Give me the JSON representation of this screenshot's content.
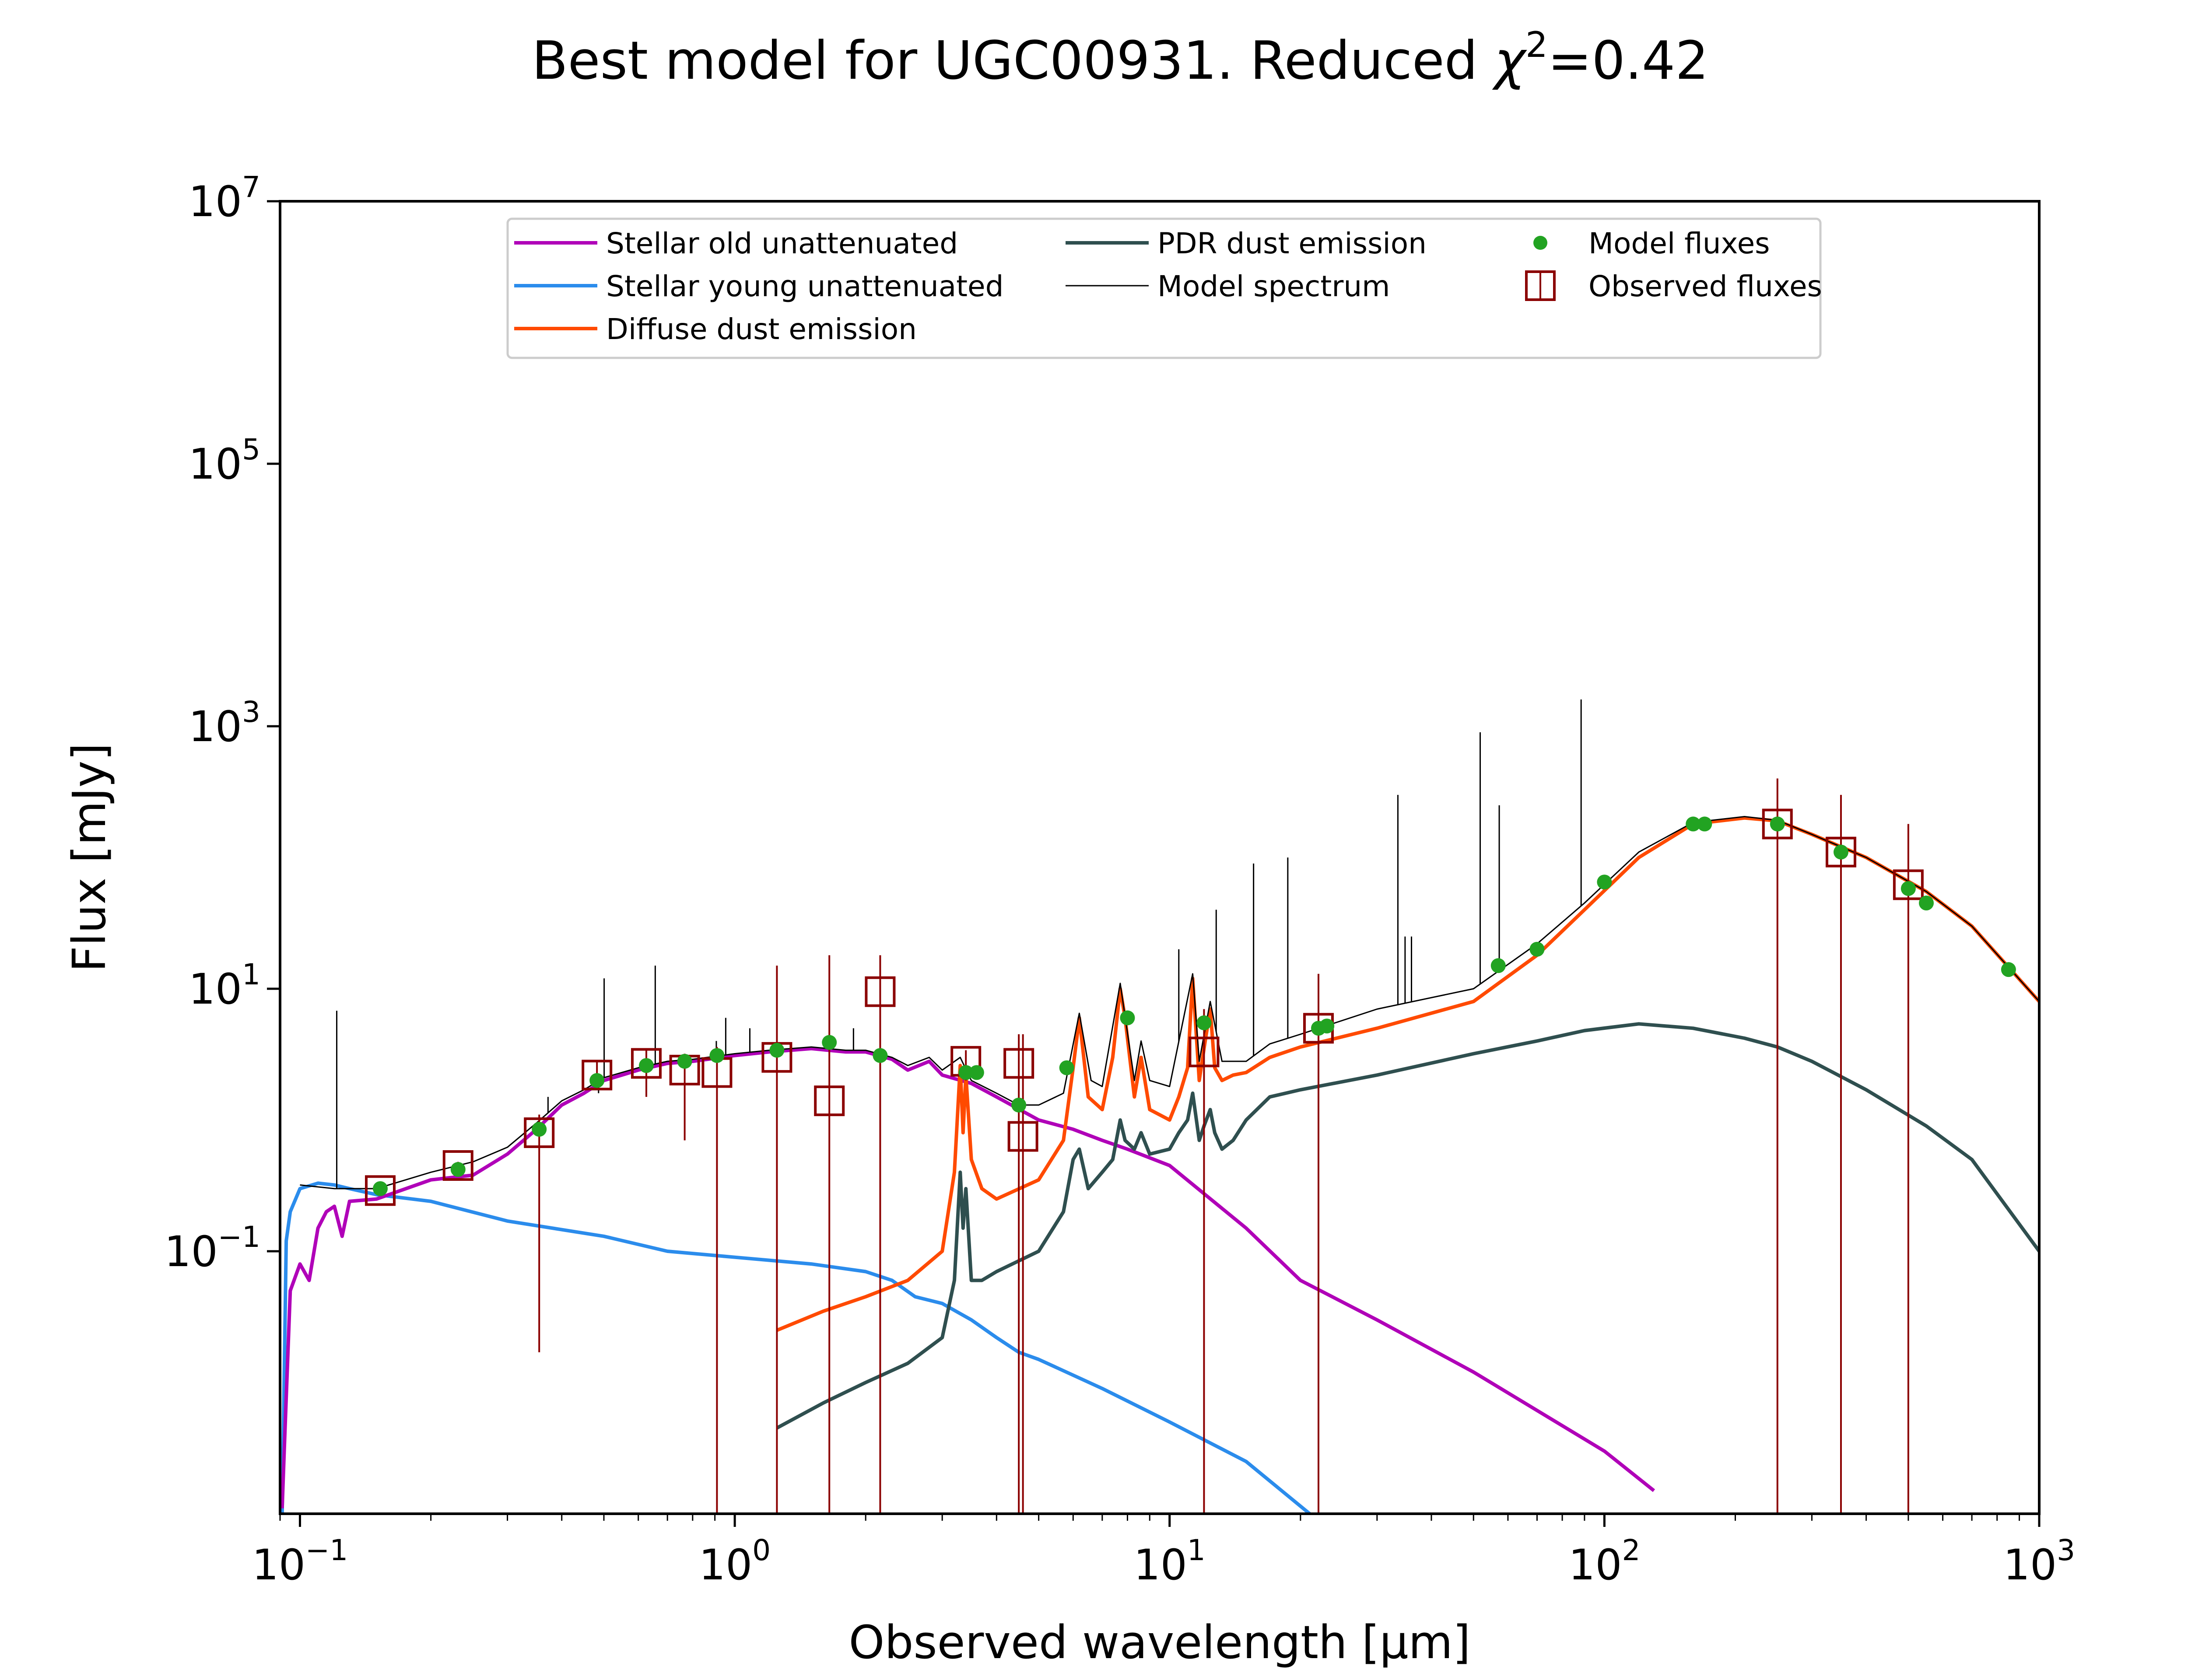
{
  "chart_data": {
    "type": "line",
    "title": "Best model for UGC00931. Reduced χ²=0.42",
    "title_parts": {
      "main": "Best model for UGC00931. Reduced ",
      "chi": "χ",
      "sup": "2",
      "tail": "=0.42"
    },
    "xlabel": "Observed wavelength [μm]",
    "ylabel": "Flux [mJy]",
    "xscale": "log",
    "yscale": "log",
    "xlim": [
      0.09,
      1000
    ],
    "ylim": [
      0.001,
      10000000
    ],
    "x_ticks": [
      {
        "value": 0.1,
        "base": "10",
        "exp": "−1"
      },
      {
        "value": 1,
        "base": "10",
        "exp": "0"
      },
      {
        "value": 10,
        "base": "10",
        "exp": "1"
      },
      {
        "value": 100,
        "base": "10",
        "exp": "2"
      },
      {
        "value": 1000,
        "base": "10",
        "exp": "3"
      }
    ],
    "y_ticks": [
      {
        "value": 0.1,
        "base": "10",
        "exp": "−1"
      },
      {
        "value": 10,
        "base": "10",
        "exp": "1"
      },
      {
        "value": 1000,
        "base": "10",
        "exp": "3"
      },
      {
        "value": 100000,
        "base": "10",
        "exp": "5"
      },
      {
        "value": 10000000,
        "base": "10",
        "exp": "7"
      }
    ],
    "legend": {
      "position": "top-center",
      "entries": [
        {
          "key": "stellar_old",
          "label": "Stellar old unattenuated"
        },
        {
          "key": "stellar_young",
          "label": "Stellar young unattenuated"
        },
        {
          "key": "diffuse_dust",
          "label": "Diffuse dust emission"
        },
        {
          "key": "pdr_dust",
          "label": "PDR dust emission"
        },
        {
          "key": "model_spectrum",
          "label": "Model spectrum"
        },
        {
          "key": "model_fluxes",
          "label": "Model fluxes"
        },
        {
          "key": "observed_fluxes",
          "label": "Observed fluxes"
        }
      ]
    },
    "colors": {
      "stellar_old": "#b000b8",
      "stellar_young": "#2b8cec",
      "diffuse_dust": "#ff4a00",
      "pdr_dust": "#2f4f4f",
      "model_spectrum": "#000000",
      "model_fluxes": "#22a322",
      "observed_fluxes": "#8b0000"
    },
    "series": [
      {
        "key": "stellar_old",
        "name": "Stellar old unattenuated",
        "x": [
          0.091,
          0.092,
          0.095,
          0.1,
          0.105,
          0.11,
          0.115,
          0.12,
          0.125,
          0.13,
          0.15,
          0.2,
          0.25,
          0.3,
          0.35,
          0.4,
          0.45,
          0.5,
          0.6,
          0.7,
          0.8,
          1.0,
          1.2,
          1.5,
          1.8,
          2.0,
          2.3,
          2.5,
          2.8,
          3.0,
          3.5,
          4.0,
          5.0,
          6.0,
          7.0,
          8.0,
          10.0,
          15.0,
          20.0,
          30.0,
          50.0,
          100.0,
          130.0
        ],
        "y": [
          0.0011,
          0.003,
          0.05,
          0.08,
          0.06,
          0.15,
          0.2,
          0.22,
          0.13,
          0.24,
          0.25,
          0.35,
          0.38,
          0.55,
          0.85,
          1.3,
          1.6,
          2.0,
          2.4,
          2.7,
          2.8,
          3.1,
          3.3,
          3.5,
          3.3,
          3.3,
          2.9,
          2.4,
          2.8,
          2.2,
          1.9,
          1.5,
          1.0,
          0.85,
          0.7,
          0.6,
          0.45,
          0.15,
          0.06,
          0.03,
          0.012,
          0.003,
          0.0015
        ]
      },
      {
        "key": "stellar_young",
        "name": "Stellar young unattenuated",
        "x": [
          0.091,
          0.093,
          0.095,
          0.1,
          0.11,
          0.12,
          0.13,
          0.15,
          0.2,
          0.3,
          0.5,
          0.7,
          1.0,
          1.5,
          2.0,
          2.3,
          2.6,
          3.0,
          3.5,
          4.0,
          4.5,
          5.0,
          7.0,
          10.0,
          15.0,
          21.0
        ],
        "y": [
          0.001,
          0.12,
          0.2,
          0.3,
          0.33,
          0.32,
          0.3,
          0.27,
          0.24,
          0.17,
          0.13,
          0.1,
          0.09,
          0.08,
          0.07,
          0.06,
          0.045,
          0.04,
          0.03,
          0.022,
          0.017,
          0.015,
          0.009,
          0.005,
          0.0025,
          0.001
        ]
      },
      {
        "key": "diffuse_dust",
        "name": "Diffuse dust emission",
        "x": [
          1.25,
          1.6,
          2.0,
          2.5,
          3.0,
          3.2,
          3.3,
          3.35,
          3.4,
          3.5,
          3.7,
          4.0,
          5.0,
          5.7,
          6.0,
          6.2,
          6.5,
          7.0,
          7.4,
          7.7,
          7.9,
          8.3,
          8.6,
          9.0,
          10.0,
          10.5,
          11.0,
          11.3,
          11.7,
          12.0,
          12.4,
          12.7,
          13.2,
          14.0,
          15.0,
          17.0,
          20.0,
          30.0,
          50.0,
          70.0,
          90.0,
          120.0,
          160.0,
          210.0,
          250.0,
          300.0,
          400.0,
          550.0,
          700.0,
          1000.0
        ],
        "y": [
          0.025,
          0.035,
          0.045,
          0.06,
          0.1,
          0.4,
          2.6,
          0.8,
          2.2,
          0.5,
          0.3,
          0.25,
          0.35,
          0.7,
          2.5,
          6.0,
          1.5,
          1.2,
          3.0,
          10.0,
          6.0,
          1.5,
          3.0,
          1.2,
          1.0,
          1.5,
          2.5,
          12.0,
          2.0,
          3.5,
          7.0,
          2.5,
          2.0,
          2.2,
          2.3,
          3.0,
          3.6,
          5.0,
          8.0,
          18.0,
          40.0,
          100.0,
          180.0,
          200.0,
          190.0,
          150.0,
          100.0,
          55.0,
          30.0,
          8.0
        ]
      },
      {
        "key": "pdr_dust",
        "name": "PDR dust emission",
        "x": [
          1.25,
          1.6,
          2.0,
          2.5,
          3.0,
          3.2,
          3.3,
          3.35,
          3.4,
          3.5,
          3.7,
          4.0,
          5.0,
          5.7,
          6.0,
          6.2,
          6.5,
          7.0,
          7.4,
          7.7,
          7.9,
          8.3,
          8.6,
          9.0,
          10.0,
          10.5,
          11.0,
          11.3,
          11.7,
          12.0,
          12.4,
          12.7,
          13.2,
          14.0,
          15.0,
          17.0,
          20.0,
          30.0,
          50.0,
          70.0,
          90.0,
          120.0,
          160.0,
          210.0,
          250.0,
          300.0,
          400.0,
          550.0,
          700.0,
          1000.0
        ],
        "y": [
          0.0045,
          0.007,
          0.01,
          0.014,
          0.022,
          0.06,
          0.4,
          0.15,
          0.3,
          0.06,
          0.06,
          0.07,
          0.1,
          0.2,
          0.5,
          0.6,
          0.3,
          0.4,
          0.5,
          1.0,
          0.7,
          0.6,
          0.8,
          0.55,
          0.6,
          0.8,
          1.0,
          1.6,
          0.7,
          0.9,
          1.2,
          0.8,
          0.6,
          0.7,
          1.0,
          1.5,
          1.7,
          2.2,
          3.2,
          4.0,
          4.8,
          5.4,
          5.0,
          4.2,
          3.6,
          2.8,
          1.7,
          0.9,
          0.5,
          0.1
        ]
      },
      {
        "key": "model_spectrum",
        "name": "Model spectrum",
        "x": [
          0.1,
          0.12,
          0.15,
          0.2,
          0.25,
          0.3,
          0.35,
          0.4,
          0.45,
          0.5,
          0.6,
          0.7,
          0.8,
          1.0,
          1.2,
          1.5,
          1.8,
          2.0,
          2.3,
          2.5,
          2.8,
          3.0,
          3.3,
          3.5,
          4.0,
          4.5,
          5.0,
          5.7,
          6.2,
          6.6,
          7.0,
          7.7,
          8.3,
          8.6,
          9.0,
          10.0,
          11.3,
          11.7,
          12.4,
          13.2,
          14.0,
          15.0,
          17.0,
          20.0,
          30.0,
          50.0,
          70.0,
          90.0,
          120.0,
          160.0,
          210.0,
          250.0,
          300.0,
          400.0,
          550.0,
          700.0,
          1000.0
        ],
        "y": [
          0.32,
          0.3,
          0.3,
          0.4,
          0.48,
          0.62,
          0.95,
          1.4,
          1.7,
          2.1,
          2.5,
          2.8,
          2.9,
          3.2,
          3.4,
          3.6,
          3.4,
          3.4,
          3.0,
          2.6,
          3.0,
          2.4,
          3.0,
          2.0,
          1.6,
          1.3,
          1.3,
          1.6,
          6.5,
          2.0,
          1.8,
          11.0,
          2.0,
          4.0,
          2.0,
          1.8,
          13.0,
          2.8,
          8.0,
          2.8,
          2.8,
          2.8,
          3.8,
          4.5,
          7.0,
          10.0,
          22.0,
          45.0,
          110.0,
          185.0,
          205.0,
          192.0,
          150.0,
          100.0,
          55.0,
          30.0,
          8.0
        ]
      }
    ],
    "emission_lines": [
      {
        "x": 0.1215,
        "y": 6.8
      },
      {
        "x": 0.372,
        "y": 1.5
      },
      {
        "x": 0.4861,
        "y": 1.6
      },
      {
        "x": 0.5007,
        "y": 12.0
      },
      {
        "x": 0.6563,
        "y": 15.0
      },
      {
        "x": 0.9069,
        "y": 4.0
      },
      {
        "x": 0.9532,
        "y": 6.0
      },
      {
        "x": 1.083,
        "y": 5.0
      },
      {
        "x": 1.875,
        "y": 5.0
      },
      {
        "x": 10.5,
        "y": 20.0
      },
      {
        "x": 12.8,
        "y": 40.0
      },
      {
        "x": 15.6,
        "y": 90.0
      },
      {
        "x": 18.7,
        "y": 100.0
      },
      {
        "x": 33.5,
        "y": 300.0
      },
      {
        "x": 34.8,
        "y": 25.0
      },
      {
        "x": 36.0,
        "y": 25.0
      },
      {
        "x": 51.8,
        "y": 900.0
      },
      {
        "x": 57.3,
        "y": 250.0
      },
      {
        "x": 88.4,
        "y": 1600.0
      }
    ],
    "model_fluxes": {
      "x": [
        0.153,
        0.231,
        0.355,
        0.482,
        0.626,
        0.767,
        0.91,
        1.25,
        1.65,
        2.16,
        3.4,
        3.6,
        4.5,
        5.8,
        8.0,
        12.0,
        22.0,
        23.0,
        57.0,
        70.0,
        100.0,
        160.0,
        170.0,
        250.0,
        350.0,
        500.0,
        550.0,
        850.0
      ],
      "y": [
        0.3,
        0.42,
        0.85,
        2.0,
        2.6,
        2.8,
        3.1,
        3.4,
        3.9,
        3.1,
        2.3,
        2.3,
        1.3,
        2.5,
        6.0,
        5.5,
        5.0,
        5.2,
        15.0,
        20.0,
        65.0,
        180.0,
        180.0,
        180.0,
        110.0,
        58.0,
        45.0,
        14.0
      ]
    },
    "observed_fluxes": {
      "x": [
        0.153,
        0.231,
        0.355,
        0.482,
        0.626,
        0.767,
        0.91,
        1.25,
        1.65,
        2.16,
        3.4,
        4.5,
        4.6,
        12.0,
        22.0,
        250.0,
        350.0,
        500.0
      ],
      "y": [
        0.29,
        0.45,
        0.8,
        2.2,
        2.7,
        2.4,
        2.3,
        3.0,
        1.4,
        9.5,
        2.8,
        2.7,
        0.75,
        3.3,
        5.0,
        180.0,
        110.0,
        62.0
      ],
      "err_low": [
        0.27,
        0.42,
        0.017,
        1.7,
        1.5,
        0.7,
        0.001,
        0.001,
        0.001,
        0.001,
        2.0,
        0.001,
        0.001,
        0.001,
        0.001,
        0.001,
        0.001,
        0.001
      ],
      "err_high": [
        0.31,
        0.48,
        1.1,
        2.8,
        3.5,
        3.2,
        3.6,
        15.0,
        18.0,
        18.0,
        3.4,
        4.5,
        4.5,
        7.0,
        13.0,
        400.0,
        300.0,
        180.0
      ]
    }
  }
}
